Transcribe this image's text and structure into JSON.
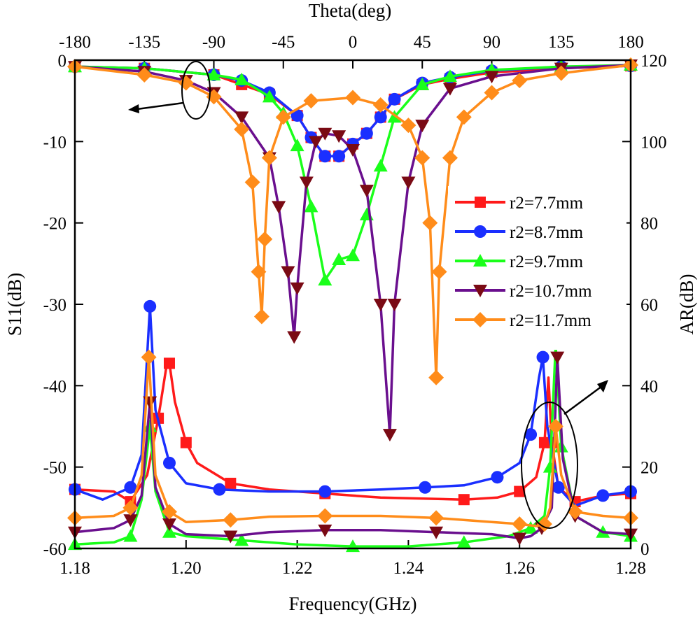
{
  "chart_data": {
    "type": "line",
    "x_axis_bottom": {
      "label": "Frequency(GHz)",
      "range": [
        1.18,
        1.28
      ],
      "ticks": [
        "1.18",
        "1.20",
        "1.22",
        "1.24",
        "1.26",
        "1.28"
      ]
    },
    "x_axis_top": {
      "label": "Theta(deg)",
      "range": [
        -180,
        180
      ],
      "ticks": [
        "-180",
        "-135",
        "-90",
        "-45",
        "0",
        "45",
        "90",
        "135",
        "180"
      ]
    },
    "y_axis_left": {
      "label": "S11(dB)",
      "range": [
        -60,
        0
      ],
      "ticks": [
        "0",
        "-10",
        "-20",
        "-30",
        "-40",
        "-50",
        "-60"
      ]
    },
    "y_axis_right": {
      "label": "AR(dB)",
      "range": [
        0,
        120
      ],
      "ticks": [
        "120",
        "100",
        "80",
        "60",
        "40",
        "20",
        "0"
      ]
    },
    "legend_position": "right-center",
    "series": [
      {
        "name": "r2=7.7mm",
        "color": "#ff1a1a",
        "marker": "square",
        "s11": [
          [
            -180,
            -0.8
          ],
          [
            -135,
            -1.0
          ],
          [
            -90,
            -1.8
          ],
          [
            -72,
            -3
          ],
          [
            -54,
            -4.2
          ],
          [
            -36,
            -6.8
          ],
          [
            -27,
            -9.5
          ],
          [
            -18,
            -11.8
          ],
          [
            -9,
            -11.8
          ],
          [
            0,
            -10.3
          ],
          [
            9,
            -9
          ],
          [
            18,
            -7
          ],
          [
            27,
            -4.8
          ],
          [
            45,
            -3
          ],
          [
            63,
            -2.3
          ],
          [
            90,
            -1.5
          ],
          [
            135,
            -1.0
          ],
          [
            180,
            -0.7
          ]
        ],
        "ar": [
          [
            1.18,
            14.5
          ],
          [
            1.187,
            14
          ],
          [
            1.19,
            11.5
          ],
          [
            1.193,
            18
          ],
          [
            1.195,
            32
          ],
          [
            1.1965,
            45
          ],
          [
            1.197,
            45.5
          ],
          [
            1.198,
            36
          ],
          [
            1.2,
            26
          ],
          [
            1.202,
            21
          ],
          [
            1.208,
            16
          ],
          [
            1.215,
            14.5
          ],
          [
            1.225,
            13.5
          ],
          [
            1.235,
            12.5
          ],
          [
            1.25,
            12
          ],
          [
            1.256,
            12.5
          ],
          [
            1.26,
            14
          ],
          [
            1.263,
            17.5
          ],
          [
            1.2645,
            26
          ],
          [
            1.2652,
            42
          ],
          [
            1.2658,
            26
          ],
          [
            1.267,
            15
          ],
          [
            1.27,
            11.5
          ],
          [
            1.275,
            13
          ],
          [
            1.28,
            13.5
          ]
        ]
      },
      {
        "name": "r2=8.7mm",
        "color": "#1a2fff",
        "marker": "circle",
        "s11": [
          [
            -180,
            -0.8
          ],
          [
            -135,
            -1.0
          ],
          [
            -90,
            -1.8
          ],
          [
            -72,
            -2.5
          ],
          [
            -54,
            -4
          ],
          [
            -36,
            -6.8
          ],
          [
            -27,
            -9.5
          ],
          [
            -18,
            -11.8
          ],
          [
            -9,
            -11.8
          ],
          [
            0,
            -10.3
          ],
          [
            9,
            -9
          ],
          [
            18,
            -7
          ],
          [
            27,
            -4.8
          ],
          [
            45,
            -2.8
          ],
          [
            63,
            -2.1
          ],
          [
            90,
            -1.3
          ],
          [
            135,
            -0.8
          ],
          [
            180,
            -0.7
          ]
        ],
        "ar": [
          [
            1.18,
            14.5
          ],
          [
            1.185,
            12
          ],
          [
            1.19,
            15
          ],
          [
            1.192,
            23
          ],
          [
            1.1935,
            59.5
          ],
          [
            1.1945,
            34
          ],
          [
            1.197,
            21
          ],
          [
            1.2,
            16
          ],
          [
            1.206,
            14.5
          ],
          [
            1.215,
            14
          ],
          [
            1.225,
            14
          ],
          [
            1.235,
            14.5
          ],
          [
            1.243,
            15
          ],
          [
            1.25,
            15.5
          ],
          [
            1.256,
            17.5
          ],
          [
            1.26,
            21
          ],
          [
            1.262,
            28
          ],
          [
            1.2635,
            42
          ],
          [
            1.2642,
            47
          ],
          [
            1.265,
            30
          ],
          [
            1.267,
            15
          ],
          [
            1.27,
            10.5
          ],
          [
            1.275,
            13
          ],
          [
            1.28,
            14
          ]
        ]
      },
      {
        "name": "r2=9.7mm",
        "color": "#1aff1a",
        "marker": "triangle-up",
        "s11": [
          [
            -180,
            -0.8
          ],
          [
            -135,
            -1.0
          ],
          [
            -90,
            -1.8
          ],
          [
            -72,
            -2.4
          ],
          [
            -54,
            -4.5
          ],
          [
            -45,
            -6.5
          ],
          [
            -36,
            -10.5
          ],
          [
            -27,
            -18
          ],
          [
            -18,
            -27
          ],
          [
            -9,
            -24.5
          ],
          [
            0,
            -24
          ],
          [
            9,
            -19
          ],
          [
            18,
            -13
          ],
          [
            27,
            -7
          ],
          [
            45,
            -3
          ],
          [
            63,
            -2
          ],
          [
            90,
            -1.2
          ],
          [
            135,
            -0.8
          ],
          [
            180,
            -0.6
          ]
        ],
        "ar": [
          [
            1.18,
            1
          ],
          [
            1.187,
            1.5
          ],
          [
            1.19,
            3
          ],
          [
            1.192,
            12
          ],
          [
            1.1935,
            30
          ],
          [
            1.1945,
            14
          ],
          [
            1.197,
            4
          ],
          [
            1.2,
            3
          ],
          [
            1.21,
            2
          ],
          [
            1.22,
            1
          ],
          [
            1.23,
            0.5
          ],
          [
            1.24,
            0.5
          ],
          [
            1.25,
            1.5
          ],
          [
            1.258,
            3
          ],
          [
            1.262,
            5
          ],
          [
            1.2645,
            8
          ],
          [
            1.2655,
            20
          ],
          [
            1.2665,
            50
          ],
          [
            1.2675,
            25
          ],
          [
            1.27,
            8
          ],
          [
            1.275,
            4
          ],
          [
            1.28,
            3
          ]
        ]
      },
      {
        "name": "r2=10.7mm",
        "color": "#6a0f8e",
        "marker": "triangle-down-darkred",
        "s11": [
          [
            -180,
            -0.8
          ],
          [
            -135,
            -1.4
          ],
          [
            -108,
            -2.5
          ],
          [
            -90,
            -4
          ],
          [
            -72,
            -7
          ],
          [
            -54,
            -12
          ],
          [
            -48,
            -18
          ],
          [
            -42,
            -26
          ],
          [
            -38,
            -34
          ],
          [
            -36,
            -28
          ],
          [
            -30,
            -15
          ],
          [
            -24,
            -10
          ],
          [
            -18,
            -9
          ],
          [
            -9,
            -9.3
          ],
          [
            0,
            -11
          ],
          [
            9,
            -16
          ],
          [
            18,
            -30
          ],
          [
            24,
            -46
          ],
          [
            27,
            -30
          ],
          [
            36,
            -15
          ],
          [
            45,
            -8
          ],
          [
            63,
            -3.5
          ],
          [
            90,
            -2
          ],
          [
            135,
            -1.0
          ],
          [
            180,
            -0.6
          ]
        ],
        "ar": [
          [
            1.18,
            4
          ],
          [
            1.187,
            5
          ],
          [
            1.19,
            7
          ],
          [
            1.192,
            13
          ],
          [
            1.1935,
            36
          ],
          [
            1.1945,
            15
          ],
          [
            1.197,
            6
          ],
          [
            1.2,
            3.5
          ],
          [
            1.208,
            3
          ],
          [
            1.215,
            4
          ],
          [
            1.225,
            4.5
          ],
          [
            1.235,
            4.5
          ],
          [
            1.245,
            4
          ],
          [
            1.255,
            3.5
          ],
          [
            1.26,
            2.5
          ],
          [
            1.262,
            3
          ],
          [
            1.264,
            5
          ],
          [
            1.2658,
            10
          ],
          [
            1.2668,
            47
          ],
          [
            1.2678,
            22
          ],
          [
            1.27,
            8
          ],
          [
            1.275,
            4
          ],
          [
            1.28,
            3.5
          ]
        ]
      },
      {
        "name": "r2=11.7mm",
        "color": "#ff8c1a",
        "marker": "diamond",
        "s11": [
          [
            -180,
            -0.8
          ],
          [
            -135,
            -1.8
          ],
          [
            -108,
            -2.8
          ],
          [
            -90,
            -4.5
          ],
          [
            -72,
            -8.5
          ],
          [
            -65,
            -15
          ],
          [
            -61,
            -26
          ],
          [
            -59,
            -31.5
          ],
          [
            -57,
            -22
          ],
          [
            -54,
            -12
          ],
          [
            -45,
            -7
          ],
          [
            -27,
            -5
          ],
          [
            0,
            -4.6
          ],
          [
            18,
            -5.5
          ],
          [
            36,
            -8
          ],
          [
            45,
            -12
          ],
          [
            50,
            -20
          ],
          [
            54,
            -39
          ],
          [
            56,
            -26
          ],
          [
            63,
            -12
          ],
          [
            72,
            -7
          ],
          [
            90,
            -4
          ],
          [
            108,
            -2.5
          ],
          [
            135,
            -1.6
          ],
          [
            180,
            -0.6
          ]
        ],
        "ar": [
          [
            1.18,
            7.5
          ],
          [
            1.187,
            8
          ],
          [
            1.19,
            10
          ],
          [
            1.192,
            18
          ],
          [
            1.1933,
            47
          ],
          [
            1.1945,
            18
          ],
          [
            1.197,
            9
          ],
          [
            1.2,
            6.5
          ],
          [
            1.208,
            7
          ],
          [
            1.215,
            7.8
          ],
          [
            1.225,
            8
          ],
          [
            1.235,
            8
          ],
          [
            1.245,
            7.5
          ],
          [
            1.255,
            6.5
          ],
          [
            1.26,
            6
          ],
          [
            1.263,
            5.5
          ],
          [
            1.2645,
            6
          ],
          [
            1.2655,
            10
          ],
          [
            1.2665,
            30
          ],
          [
            1.2675,
            18
          ],
          [
            1.27,
            9
          ],
          [
            1.275,
            8
          ],
          [
            1.28,
            7.5
          ]
        ]
      }
    ]
  }
}
